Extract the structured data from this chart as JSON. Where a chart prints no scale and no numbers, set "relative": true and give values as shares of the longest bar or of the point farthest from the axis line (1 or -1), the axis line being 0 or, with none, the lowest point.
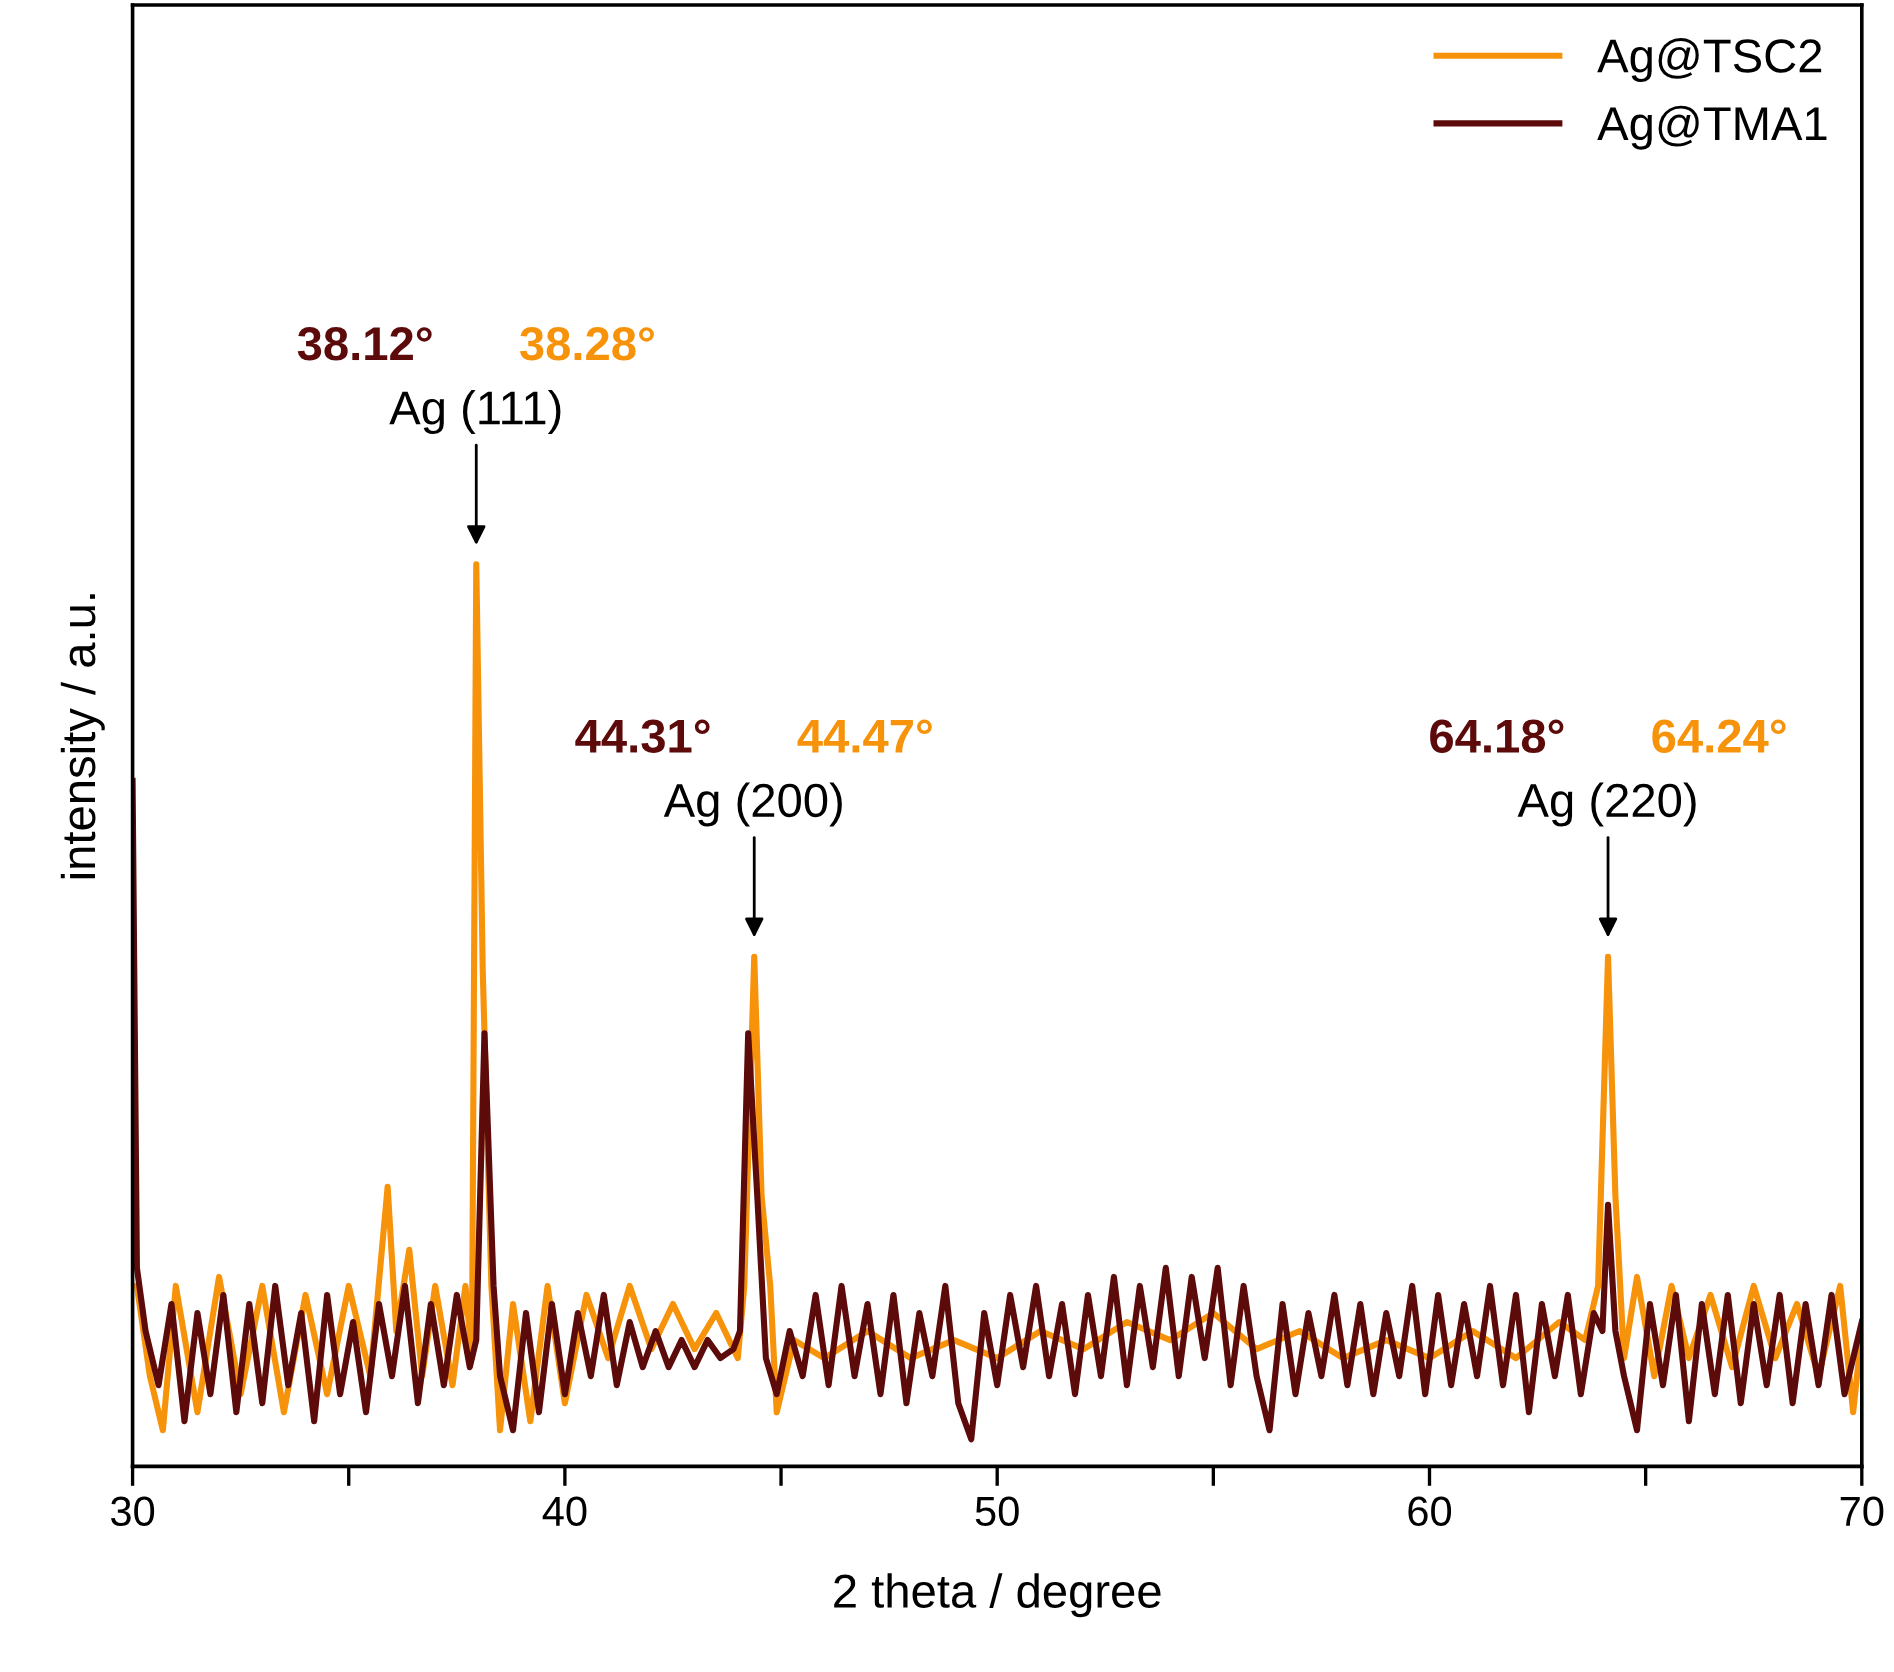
{
  "chart_data": {
    "type": "line",
    "relative": true,
    "xlabel": "2 theta / degree",
    "ylabel": "intensity / a.u.",
    "xlim": [
      30,
      70
    ],
    "xticks": [
      30,
      {
        "value": 35,
        "label": null
      },
      40,
      {
        "value": 45,
        "label": null
      },
      50,
      {
        "value": 55,
        "label": null
      },
      60,
      {
        "value": 65,
        "label": null
      },
      70
    ],
    "tick_labels": "x",
    "grid": false,
    "legend": "top right",
    "marker": "none",
    "line_style": "solid",
    "annotations": [
      {
        "text": "Ag (111)",
        "x": 37.95,
        "y": 1.0
      },
      "38.12°",
      "38.28°",
      {
        "text": "Ag (200)",
        "x": 44.38,
        "y": 0.565
      },
      "44.31°",
      "44.47°",
      {
        "text": "Ag (220)",
        "x": 64.13,
        "y": 0.565
      },
      "64.18°",
      "64.24°"
    ],
    "series": [
      {
        "name": "Ag@TSC2",
        "color": "#f7930a",
        "x": [
          30.1,
          30.4,
          30.7,
          31.0,
          31.5,
          32.0,
          32.5,
          33.0,
          33.5,
          34.0,
          34.5,
          35.0,
          35.5,
          35.9,
          36.1,
          36.4,
          36.7,
          37.0,
          37.4,
          37.7,
          37.85,
          37.95,
          38.1,
          38.3,
          38.5,
          38.8,
          39.2,
          39.6,
          40.0,
          40.5,
          41.0,
          41.5,
          42.0,
          42.5,
          43.0,
          43.5,
          44.0,
          44.15,
          44.38,
          44.55,
          44.75,
          44.9,
          45.3,
          46.0,
          47.0,
          48.0,
          49.0,
          50.0,
          51.0,
          52.0,
          53.0,
          54.0,
          55.0,
          56.0,
          57.0,
          58.0,
          59.0,
          60.0,
          61.0,
          62.0,
          63.0,
          63.6,
          63.9,
          64.13,
          64.3,
          64.5,
          64.8,
          65.2,
          65.6,
          66.0,
          66.5,
          67.0,
          67.5,
          68.0,
          68.5,
          69.0,
          69.5,
          69.8,
          70.0
        ],
        "values": [
          0.2,
          0.1,
          0.04,
          0.2,
          0.06,
          0.21,
          0.08,
          0.2,
          0.06,
          0.19,
          0.08,
          0.2,
          0.1,
          0.31,
          0.15,
          0.24,
          0.1,
          0.2,
          0.09,
          0.2,
          0.12,
          1.0,
          0.55,
          0.2,
          0.04,
          0.18,
          0.05,
          0.2,
          0.07,
          0.19,
          0.12,
          0.2,
          0.13,
          0.18,
          0.13,
          0.17,
          0.12,
          0.2,
          0.565,
          0.3,
          0.2,
          0.06,
          0.14,
          0.12,
          0.15,
          0.12,
          0.14,
          0.12,
          0.15,
          0.13,
          0.16,
          0.14,
          0.17,
          0.13,
          0.15,
          0.12,
          0.14,
          0.12,
          0.15,
          0.12,
          0.16,
          0.14,
          0.2,
          0.565,
          0.3,
          0.12,
          0.21,
          0.1,
          0.2,
          0.12,
          0.19,
          0.11,
          0.2,
          0.12,
          0.18,
          0.1,
          0.2,
          0.06,
          0.15
        ]
      },
      {
        "name": "Ag@TMA1",
        "color": "#5c0a0a",
        "x": [
          30.0,
          30.1,
          30.3,
          30.6,
          30.9,
          31.2,
          31.5,
          31.8,
          32.1,
          32.4,
          32.7,
          33.0,
          33.3,
          33.6,
          33.9,
          34.2,
          34.5,
          34.8,
          35.1,
          35.4,
          35.7,
          36.0,
          36.3,
          36.6,
          36.9,
          37.2,
          37.5,
          37.8,
          37.95,
          38.14,
          38.35,
          38.5,
          38.8,
          39.1,
          39.4,
          39.7,
          40.0,
          40.3,
          40.6,
          40.9,
          41.2,
          41.5,
          41.8,
          42.1,
          42.4,
          42.7,
          43.0,
          43.3,
          43.6,
          43.9,
          44.05,
          44.24,
          44.45,
          44.65,
          44.9,
          45.2,
          45.5,
          45.8,
          46.1,
          46.4,
          46.7,
          47.0,
          47.3,
          47.6,
          47.9,
          48.2,
          48.5,
          48.8,
          49.1,
          49.4,
          49.7,
          50.0,
          50.3,
          50.6,
          50.9,
          51.2,
          51.5,
          51.8,
          52.1,
          52.4,
          52.7,
          53.0,
          53.3,
          53.6,
          53.9,
          54.2,
          54.5,
          54.8,
          55.1,
          55.4,
          55.7,
          56.0,
          56.3,
          56.6,
          56.9,
          57.2,
          57.5,
          57.8,
          58.1,
          58.4,
          58.7,
          59.0,
          59.3,
          59.6,
          59.9,
          60.2,
          60.5,
          60.8,
          61.1,
          61.4,
          61.7,
          62.0,
          62.3,
          62.6,
          62.9,
          63.2,
          63.5,
          63.8,
          64.0,
          64.13,
          64.3,
          64.5,
          64.8,
          65.1,
          65.4,
          65.7,
          66.0,
          66.3,
          66.6,
          66.9,
          67.2,
          67.5,
          67.8,
          68.1,
          68.4,
          68.7,
          69.0,
          69.3,
          69.6,
          70.0
        ],
        "values": [
          0.76,
          0.22,
          0.15,
          0.09,
          0.18,
          0.05,
          0.17,
          0.08,
          0.19,
          0.06,
          0.18,
          0.07,
          0.2,
          0.09,
          0.17,
          0.05,
          0.19,
          0.08,
          0.16,
          0.06,
          0.18,
          0.1,
          0.2,
          0.07,
          0.18,
          0.09,
          0.19,
          0.11,
          0.14,
          0.48,
          0.2,
          0.1,
          0.04,
          0.17,
          0.06,
          0.18,
          0.08,
          0.17,
          0.1,
          0.19,
          0.09,
          0.16,
          0.11,
          0.15,
          0.11,
          0.14,
          0.11,
          0.14,
          0.12,
          0.13,
          0.15,
          0.48,
          0.3,
          0.12,
          0.08,
          0.15,
          0.1,
          0.19,
          0.09,
          0.2,
          0.1,
          0.18,
          0.08,
          0.19,
          0.07,
          0.17,
          0.1,
          0.2,
          0.07,
          0.03,
          0.17,
          0.09,
          0.19,
          0.11,
          0.2,
          0.1,
          0.18,
          0.08,
          0.19,
          0.1,
          0.21,
          0.09,
          0.2,
          0.11,
          0.22,
          0.1,
          0.21,
          0.12,
          0.22,
          0.09,
          0.2,
          0.1,
          0.04,
          0.18,
          0.08,
          0.17,
          0.1,
          0.19,
          0.09,
          0.18,
          0.08,
          0.17,
          0.1,
          0.2,
          0.08,
          0.19,
          0.09,
          0.18,
          0.1,
          0.2,
          0.09,
          0.19,
          0.06,
          0.18,
          0.1,
          0.19,
          0.08,
          0.17,
          0.15,
          0.29,
          0.15,
          0.1,
          0.04,
          0.18,
          0.09,
          0.19,
          0.05,
          0.18,
          0.08,
          0.19,
          0.07,
          0.18,
          0.09,
          0.19,
          0.07,
          0.18,
          0.09,
          0.19,
          0.08,
          0.16
        ]
      }
    ]
  }
}
